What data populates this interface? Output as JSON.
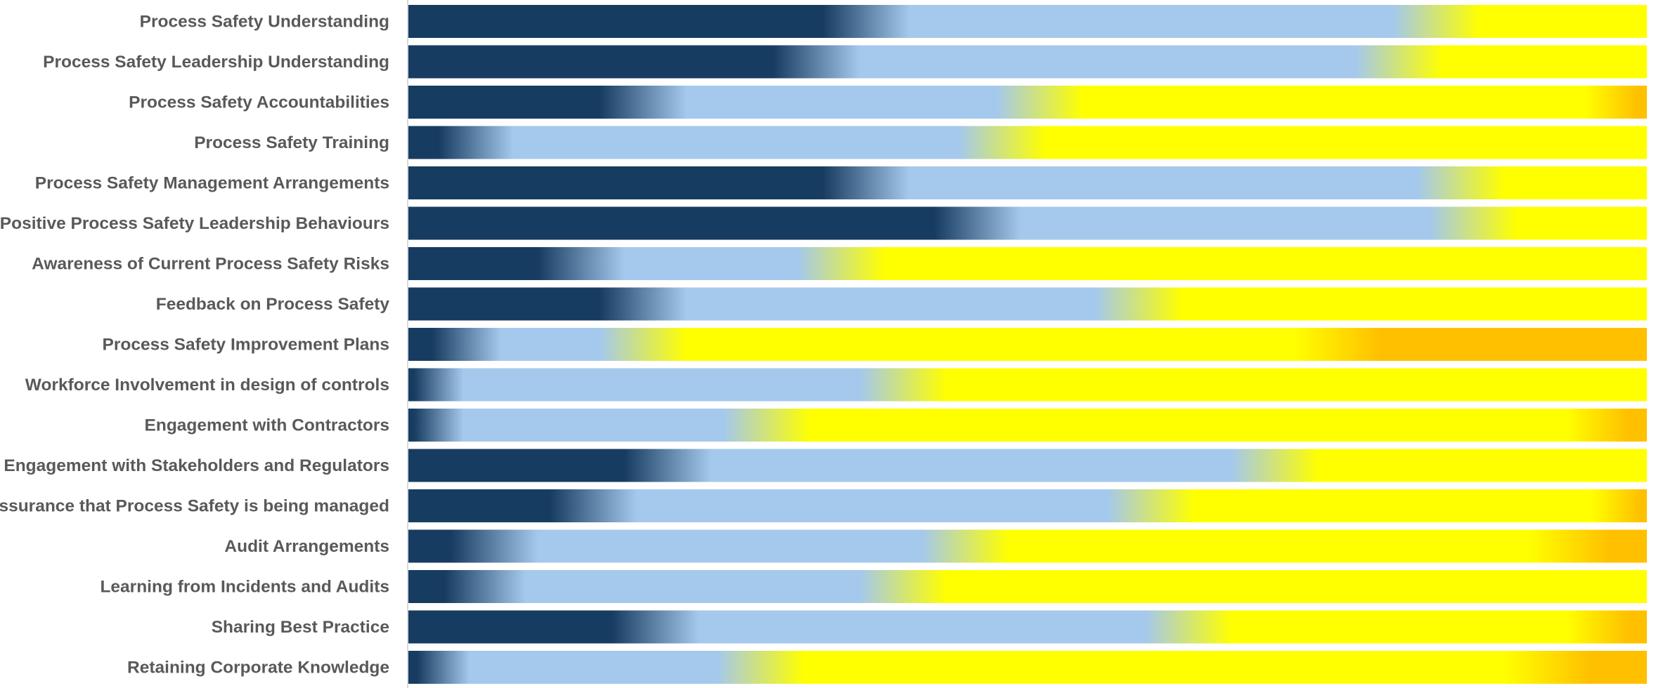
{
  "chart_data": {
    "type": "bar",
    "orientation": "horizontal",
    "stacked": true,
    "normalized": true,
    "bar_style": "gradient blended segments",
    "title": "",
    "xlabel": "",
    "ylabel": "",
    "xlim": [
      0,
      100
    ],
    "grid": false,
    "legend": "none",
    "series_colors": [
      "#173c61",
      "#a5c9ec",
      "#ffff00",
      "#ffc000"
    ],
    "categories": [
      "Process Safety Understanding",
      "Process Safety Leadership Understanding",
      "Process Safety Accountabilities",
      "Process Safety Training",
      "Process Safety Management Arrangements",
      "Positive Process Safety Leadership Behaviours",
      "Awareness of Current Process Safety Risks",
      "Feedback on Process Safety",
      "Process Safety Improvement Plans",
      "Workforce Involvement in design of controls",
      "Engagement with Contractors",
      "Engagement with Stakeholders and Regulators",
      "Assurance that Process Safety is being managed",
      "Audit Arrangements",
      "Learning from Incidents and Audits",
      "Sharing Best Practice",
      "Retaining Corporate Knowledge"
    ],
    "series": [
      {
        "values": [
          37,
          33,
          19,
          5,
          37,
          46,
          14,
          19,
          4,
          1,
          1,
          21,
          15,
          7,
          6,
          20,
          1.5
        ]
      },
      {
        "values": [
          46,
          47,
          32,
          43,
          48,
          40,
          21,
          40,
          15,
          39,
          28,
          49,
          45,
          38,
          34,
          43,
          27
        ]
      },
      {
        "values": [
          17,
          20,
          47.5,
          52,
          15,
          14,
          65,
          41,
          56,
          60,
          68,
          30,
          39,
          49,
          60,
          34,
          63.5
        ]
      },
      {
        "values": [
          0,
          0,
          1.5,
          0,
          0,
          0,
          0,
          0,
          25,
          0,
          3,
          0,
          1,
          6,
          0,
          3,
          8
        ]
      }
    ]
  }
}
